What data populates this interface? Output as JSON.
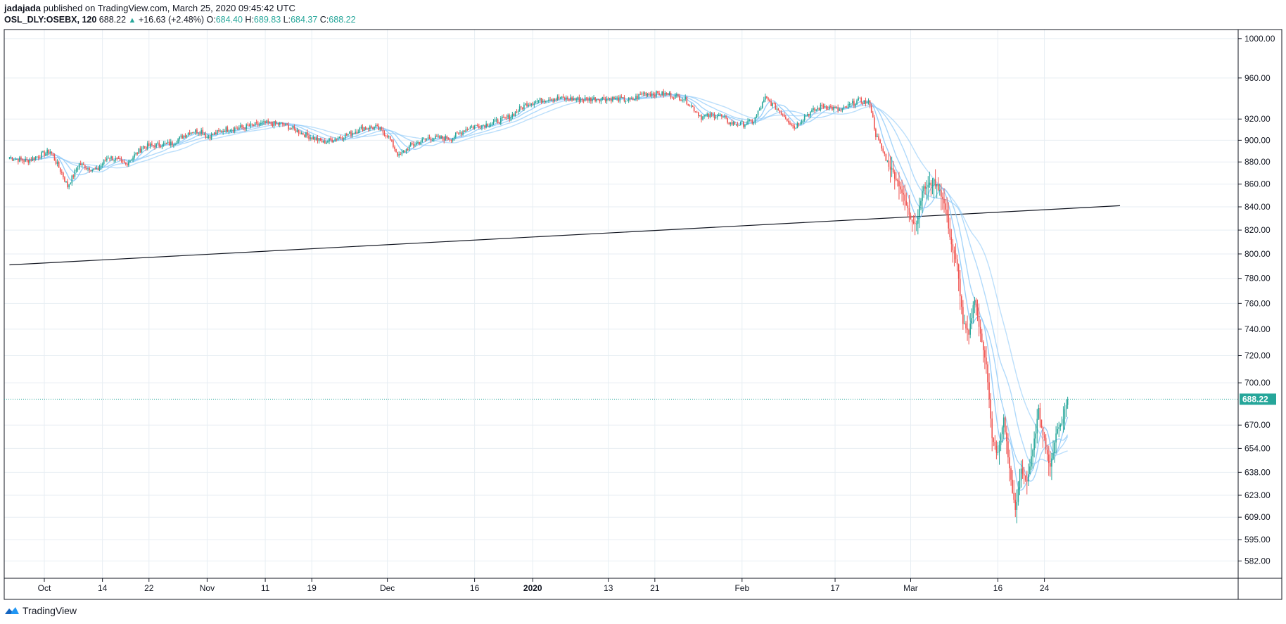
{
  "header": {
    "author": "jadajada",
    "published_text": "published on TradingView.com, March 25, 2020 09:45:42 UTC",
    "symbol": "OSL_DLY:OSEBX, 120",
    "last": "688.22",
    "change_arrow": "▲",
    "change": "+16.63 (+2.48%)",
    "o_label": "O:",
    "o_value": "684.40",
    "h_label": "H:",
    "h_value": "689.83",
    "l_label": "L:",
    "l_value": "684.37",
    "c_label": "C:",
    "c_value": "688.22"
  },
  "footer": {
    "brand": "TradingView",
    "logo_icon": "tradingview-logo-icon"
  },
  "colors": {
    "up": "#26a69a",
    "down": "#ef5350",
    "ma": "#90caf9",
    "grid": "#e7eef3",
    "price_tag": "#26a69a"
  },
  "chart_data": {
    "type": "candlestick",
    "scale": "log",
    "ylim": [
      575,
      1005
    ],
    "y_ticks": [
      "1000.00",
      "960.00",
      "920.00",
      "900.00",
      "880.00",
      "860.00",
      "840.00",
      "820.00",
      "800.00",
      "780.00",
      "760.00",
      "740.00",
      "720.00",
      "700.00",
      "670.00",
      "654.00",
      "638.00",
      "623.00",
      "609.00",
      "595.00",
      "582.00"
    ],
    "x_ticks": [
      {
        "label": "Oct",
        "day": 0
      },
      {
        "label": "14",
        "day": 10
      },
      {
        "label": "22",
        "day": 18
      },
      {
        "label": "Nov",
        "day": 28
      },
      {
        "label": "11",
        "day": 38
      },
      {
        "label": "19",
        "day": 46
      },
      {
        "label": "Dec",
        "day": 59
      },
      {
        "label": "16",
        "day": 74
      },
      {
        "label": "2020",
        "day": 84,
        "bold": true
      },
      {
        "label": "13",
        "day": 97
      },
      {
        "label": "21",
        "day": 105
      },
      {
        "label": "Feb",
        "day": 120
      },
      {
        "label": "17",
        "day": 136
      },
      {
        "label": "Mar",
        "day": 149
      },
      {
        "label": "16",
        "day": 164
      },
      {
        "label": "24",
        "day": 172
      }
    ],
    "last_price": "688.22",
    "last_price_value": 688.22,
    "trendline": [
      {
        "day": -6,
        "value": 791
      },
      {
        "day": 185,
        "value": 841
      }
    ],
    "moving_averages": 4,
    "keypoints": [
      {
        "day": -6,
        "value": 884
      },
      {
        "day": -3,
        "value": 881
      },
      {
        "day": 1,
        "value": 890
      },
      {
        "day": 3,
        "value": 870
      },
      {
        "day": 4,
        "value": 858
      },
      {
        "day": 6,
        "value": 878
      },
      {
        "day": 9,
        "value": 872
      },
      {
        "day": 11,
        "value": 885
      },
      {
        "day": 14,
        "value": 878
      },
      {
        "day": 17,
        "value": 894
      },
      {
        "day": 20,
        "value": 896
      },
      {
        "day": 22,
        "value": 897
      },
      {
        "day": 25,
        "value": 908
      },
      {
        "day": 27,
        "value": 909
      },
      {
        "day": 28,
        "value": 903
      },
      {
        "day": 31,
        "value": 910
      },
      {
        "day": 34,
        "value": 912
      },
      {
        "day": 38,
        "value": 916
      },
      {
        "day": 41,
        "value": 915
      },
      {
        "day": 45,
        "value": 905
      },
      {
        "day": 48,
        "value": 898
      },
      {
        "day": 52,
        "value": 905
      },
      {
        "day": 55,
        "value": 912
      },
      {
        "day": 57,
        "value": 912
      },
      {
        "day": 59,
        "value": 905
      },
      {
        "day": 61,
        "value": 885
      },
      {
        "day": 63,
        "value": 895
      },
      {
        "day": 66,
        "value": 902
      },
      {
        "day": 70,
        "value": 902
      },
      {
        "day": 73,
        "value": 912
      },
      {
        "day": 77,
        "value": 916
      },
      {
        "day": 80,
        "value": 922
      },
      {
        "day": 83,
        "value": 935
      },
      {
        "day": 87,
        "value": 940
      },
      {
        "day": 92,
        "value": 939
      },
      {
        "day": 97,
        "value": 940
      },
      {
        "day": 101,
        "value": 938
      },
      {
        "day": 103,
        "value": 945
      },
      {
        "day": 107,
        "value": 944
      },
      {
        "day": 110,
        "value": 940
      },
      {
        "day": 113,
        "value": 922
      },
      {
        "day": 116,
        "value": 924
      },
      {
        "day": 118,
        "value": 916
      },
      {
        "day": 120,
        "value": 915
      },
      {
        "day": 122,
        "value": 918
      },
      {
        "day": 124,
        "value": 940
      },
      {
        "day": 127,
        "value": 925
      },
      {
        "day": 129,
        "value": 912
      },
      {
        "day": 131,
        "value": 924
      },
      {
        "day": 134,
        "value": 933
      },
      {
        "day": 137,
        "value": 928
      },
      {
        "day": 140,
        "value": 938
      },
      {
        "day": 142,
        "value": 935
      },
      {
        "day": 143,
        "value": 905
      },
      {
        "day": 145,
        "value": 880
      },
      {
        "day": 147,
        "value": 860
      },
      {
        "day": 149,
        "value": 830
      },
      {
        "day": 150,
        "value": 826
      },
      {
        "day": 151,
        "value": 855
      },
      {
        "day": 153,
        "value": 862
      },
      {
        "day": 154,
        "value": 855
      },
      {
        "day": 155,
        "value": 838
      },
      {
        "day": 156,
        "value": 808
      },
      {
        "day": 157,
        "value": 790
      },
      {
        "day": 158,
        "value": 745
      },
      {
        "day": 159,
        "value": 735
      },
      {
        "day": 160,
        "value": 765
      },
      {
        "day": 161,
        "value": 735
      },
      {
        "day": 162,
        "value": 715
      },
      {
        "day": 163,
        "value": 660
      },
      {
        "day": 164,
        "value": 650
      },
      {
        "day": 165,
        "value": 675
      },
      {
        "day": 166,
        "value": 640
      },
      {
        "day": 167,
        "value": 612
      },
      {
        "day": 168,
        "value": 640
      },
      {
        "day": 169,
        "value": 632
      },
      {
        "day": 170,
        "value": 652
      },
      {
        "day": 171,
        "value": 680
      },
      {
        "day": 172,
        "value": 660
      },
      {
        "day": 173,
        "value": 640
      },
      {
        "day": 174,
        "value": 665
      },
      {
        "day": 175,
        "value": 672
      },
      {
        "day": 176,
        "value": 688.22
      }
    ]
  }
}
